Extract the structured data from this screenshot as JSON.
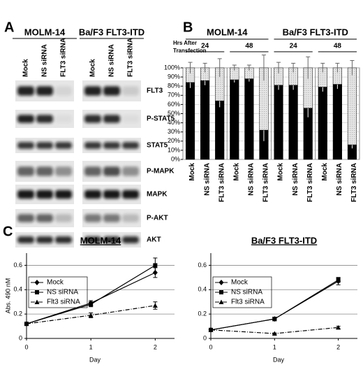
{
  "blot": {
    "panel": "A",
    "cell_lines": [
      "MOLM-14",
      "Ba/F3 FLT3-ITD"
    ],
    "lanes": [
      "Mock",
      "NS siRNA",
      "FLT3 siRNA"
    ],
    "proteins": [
      "FLT3",
      "P-STAT5",
      "STAT5",
      "P-MAPK",
      "MAPK",
      "P-AKT",
      "AKT"
    ]
  },
  "chart_data": [
    {
      "type": "bar",
      "stacked": true,
      "panel": "B",
      "group_titles": [
        "MOLM-14",
        "Ba/F3 FLT3-ITD"
      ],
      "subgroup_title": [
        "Hrs After",
        "Transfection"
      ],
      "subgroups": [
        "24",
        "48",
        "24",
        "48"
      ],
      "categories": [
        "Mock",
        "NS siRNA",
        "FLT3 siRNA",
        "Mock",
        "NS siRNA",
        "FLT3 siRNA",
        "Mock",
        "NS siRNA",
        "FLT3 siRNA",
        "Mock",
        "NS siRNA",
        "FLT3 siRNA"
      ],
      "series": [
        {
          "color": "#000000",
          "values": [
            84,
            86,
            64,
            87,
            88,
            32,
            81,
            81,
            56,
            79,
            82,
            16
          ],
          "errors": [
            6,
            5,
            7,
            3,
            3,
            12,
            5,
            5,
            10,
            5,
            5,
            4
          ]
        },
        {
          "color": "#d9d9d9",
          "values": [
            16,
            14,
            36,
            13,
            12,
            68,
            19,
            19,
            44,
            21,
            18,
            84
          ],
          "errors": [
            6,
            5,
            10,
            3,
            3,
            14,
            6,
            5,
            12,
            5,
            5,
            8
          ]
        }
      ],
      "ylim": [
        0,
        100
      ],
      "yticks": [
        {
          "value": 0,
          "label": "0%"
        },
        {
          "value": 10,
          "label": "10%"
        },
        {
          "value": 20,
          "label": "20%"
        },
        {
          "value": 30,
          "label": "30%"
        },
        {
          "value": 40,
          "label": "40%"
        },
        {
          "value": 50,
          "label": "50%"
        },
        {
          "value": 60,
          "label": "60%"
        },
        {
          "value": 70,
          "label": "70%"
        },
        {
          "value": 80,
          "label": "80%"
        },
        {
          "value": 90,
          "label": "90%"
        },
        {
          "value": 100,
          "label": "100%"
        }
      ],
      "grid": true
    },
    {
      "type": "line",
      "panel": "C",
      "title": "MOLM-14",
      "ylabel": "Abs. 490 nM",
      "xlabel": "Day",
      "x": [
        0,
        1,
        2
      ],
      "xlim": [
        0,
        2.3
      ],
      "xticks": [
        0,
        1,
        2
      ],
      "ylim": [
        0,
        0.7
      ],
      "yticks": [
        0,
        0.2,
        0.4,
        0.6
      ],
      "grid": true,
      "series": [
        {
          "name": "Mock",
          "color": "#000000",
          "marker": "diamond",
          "linestyle": "solid",
          "values": [
            0.12,
            0.29,
            0.54
          ],
          "errors": [
            0.01,
            0.02,
            0.04
          ]
        },
        {
          "name": "NS siRNA",
          "color": "#000000",
          "marker": "square",
          "linestyle": "solid",
          "values": [
            0.12,
            0.28,
            0.6
          ],
          "errors": [
            0.01,
            0.02,
            0.06
          ]
        },
        {
          "name": "Flt3 siRNA",
          "color": "#000000",
          "marker": "triangle",
          "linestyle": "dashed",
          "values": [
            0.12,
            0.19,
            0.27
          ],
          "errors": [
            0.01,
            0.02,
            0.03
          ]
        }
      ]
    },
    {
      "type": "line",
      "title": "Ba/F3 FLT3-ITD",
      "xlabel": "Day",
      "x": [
        0,
        1,
        2
      ],
      "xlim": [
        0,
        2.3
      ],
      "xticks": [
        0,
        1,
        2
      ],
      "ylim": [
        0,
        0.7
      ],
      "yticks": [
        0,
        0.2,
        0.4,
        0.6
      ],
      "grid": true,
      "series": [
        {
          "name": "Mock",
          "color": "#000000",
          "marker": "diamond",
          "linestyle": "solid",
          "values": [
            0.07,
            0.16,
            0.47
          ],
          "errors": [
            0.01,
            0.015,
            0.03
          ]
        },
        {
          "name": "NS siRNA",
          "color": "#000000",
          "marker": "square",
          "linestyle": "solid",
          "values": [
            0.07,
            0.16,
            0.48
          ],
          "errors": [
            0.01,
            0.015,
            0.02
          ]
        },
        {
          "name": "Flt3 siRNA",
          "color": "#000000",
          "marker": "triangle",
          "linestyle": "dashed",
          "values": [
            0.07,
            0.04,
            0.09
          ],
          "errors": [
            0.005,
            0.005,
            0.01
          ]
        }
      ]
    }
  ]
}
